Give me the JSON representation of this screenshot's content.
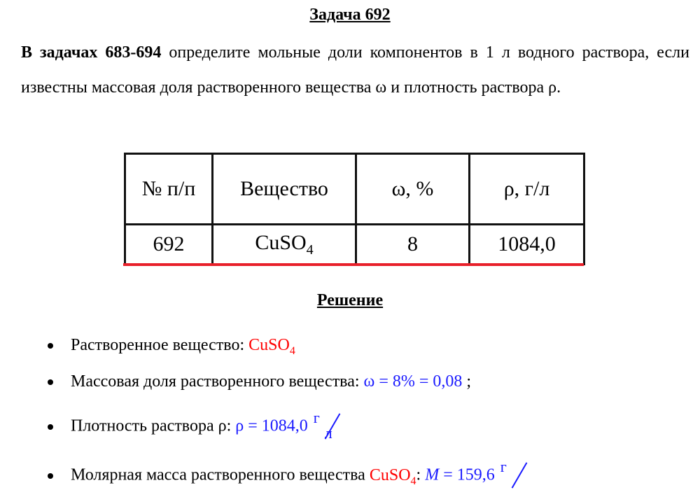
{
  "title": "Задача 692",
  "intro": {
    "bold": "В задачах 683-694",
    "text": " определите мольные доли компонентов в 1 л водного раствора, если известны массовая доля растворенного вещества ω и плотность раствора ρ."
  },
  "table": {
    "headers": [
      "№ п/п",
      "Вещество",
      "ω, %",
      "ρ, г/л"
    ],
    "row": {
      "num": "692",
      "substance": "CuSO",
      "substance_sub": "4",
      "omega": "8",
      "rho": "1084,0"
    }
  },
  "solution_title": "Решение",
  "bullets": [
    {
      "label": "Растворенное вещество: ",
      "value": "CuSO",
      "sub": "4"
    },
    {
      "label": "Массовая доля растворенного вещества: ",
      "formula": "ω = 8% = 0,08",
      "tail": " ;"
    },
    {
      "label": "Плотность раствора ρ: ",
      "formula": "ρ = 1084,0",
      "unit_num": "г",
      "unit_den": "л"
    },
    {
      "label": "Молярная масса растворенного вещества ",
      "value": "CuSO",
      "sub": "4",
      "colon": ": ",
      "formula_sym": "M",
      "formula_val": " = 159,6",
      "unit_num": "г"
    }
  ],
  "colors": {
    "highlight": "#ff0000",
    "formula": "#1a1aff",
    "table_underline": "#e8202a"
  }
}
